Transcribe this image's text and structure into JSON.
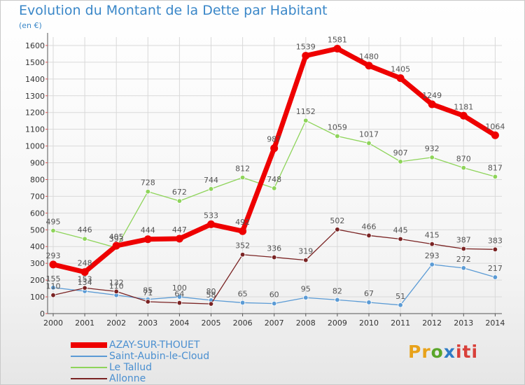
{
  "header": {
    "title": "Evolution du Montant de la Dette par Habitant",
    "unit": "(en €)"
  },
  "colors": {
    "title": "#3a87c8",
    "grid": "#d9d9d9",
    "axis_text": "#333333",
    "value_text": "#555555"
  },
  "logo": {
    "parts": [
      "Pr",
      "o",
      "x",
      "iti"
    ]
  },
  "chart_data": {
    "type": "line",
    "title": "Evolution du Montant de la Dette par Habitant",
    "ylabel": "(en €)",
    "xlabel": "",
    "x": [
      "2000",
      "2001",
      "2002",
      "2003",
      "2004",
      "2005",
      "2006",
      "2007",
      "2008",
      "2009",
      "2010",
      "2011",
      "2012",
      "2013",
      "2014"
    ],
    "ylim": [
      0,
      1650
    ],
    "yticks": [
      0,
      100,
      200,
      300,
      400,
      500,
      600,
      700,
      800,
      900,
      1000,
      1100,
      1200,
      1300,
      1400,
      1500,
      1600
    ],
    "grid": true,
    "legend_position": "bottom-left",
    "series": [
      {
        "name": "AZAY-SUR-THOUET",
        "color": "#ee0000",
        "width": 7,
        "values": [
          293,
          248,
          405,
          444,
          447,
          533,
          492,
          987,
          1539,
          1581,
          1480,
          1405,
          1249,
          1181,
          1064
        ],
        "labels": [
          "293",
          "248",
          "405",
          "444",
          "447",
          "533",
          "492",
          "987",
          "1539",
          "1581",
          "1480",
          "1405",
          "1249",
          "1181",
          "1064"
        ]
      },
      {
        "name": "Saint-Aubin-le-Cloud",
        "color": "#5b9bd5",
        "width": 1.3,
        "values": [
          155,
          134,
          110,
          85,
          100,
          80,
          65,
          60,
          95,
          82,
          67,
          51,
          293,
          272,
          217
        ],
        "labels": [
          "155",
          "134",
          "110",
          "85",
          "100",
          "80",
          "65",
          "60",
          "95",
          "82",
          "67",
          "51",
          "293",
          "272",
          "217"
        ]
      },
      {
        "name": "Le Tallud",
        "color": "#8ed45a",
        "width": 1.3,
        "values": [
          495,
          446,
          393,
          728,
          672,
          744,
          812,
          748,
          1152,
          1059,
          1017,
          907,
          932,
          870,
          817
        ],
        "labels": [
          "495",
          "446",
          "393",
          "728",
          "672",
          "744",
          "812",
          "748",
          "1152",
          "1059",
          "1017",
          "907",
          "932",
          "870",
          "817"
        ]
      },
      {
        "name": "Allonne",
        "color": "#7a2323",
        "width": 1.3,
        "values": [
          110,
          153,
          132,
          71,
          64,
          58,
          352,
          336,
          319,
          502,
          466,
          445,
          415,
          387,
          383
        ],
        "labels": [
          "110",
          "153",
          "132",
          "71",
          "64",
          "58",
          "352",
          "336",
          "319",
          "502",
          "466",
          "445",
          "415",
          "387",
          "383"
        ]
      }
    ]
  }
}
